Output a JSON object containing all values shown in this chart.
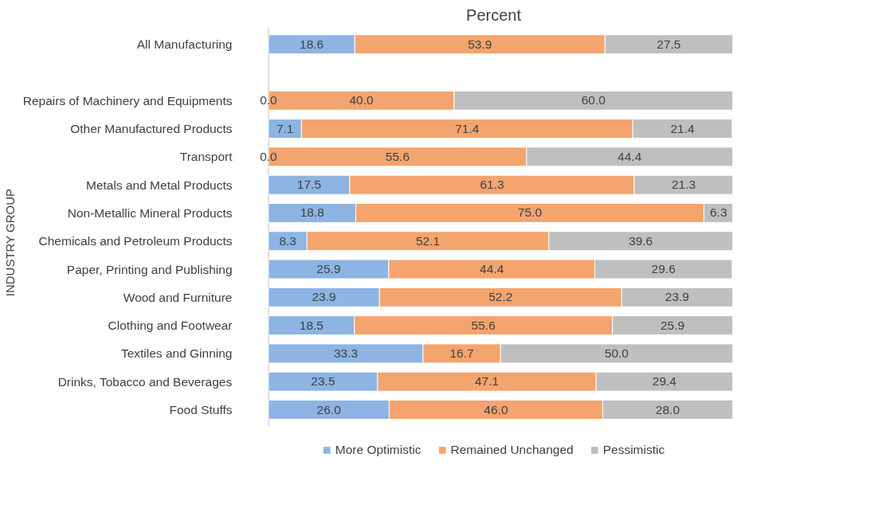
{
  "chart_data": {
    "type": "bar",
    "orientation": "horizontal",
    "stacked": true,
    "title": "Percent",
    "ylabel": "INDUSTRY GROUP",
    "categories": [
      "All Manufacturing",
      null,
      "Repairs of Machinery and Equipments",
      "Other Manufactured Products",
      "Transport",
      "Metals and Metal Products",
      "Non-Metallic Mineral Products",
      "Chemicals and Petroleum Products",
      "Paper, Printing and Publishing",
      "Wood and Furniture",
      "Clothing and Footwear",
      "Textiles and Ginning",
      "Drinks, Tobacco and Beverages",
      "Food Stuffs"
    ],
    "series": [
      {
        "name": "More Optimistic",
        "color": "#8db4e2",
        "values": [
          18.6,
          null,
          0.0,
          7.1,
          0.0,
          17.5,
          18.8,
          8.3,
          25.9,
          23.9,
          18.5,
          33.3,
          23.5,
          26.0
        ],
        "value_labels": [
          "18.6",
          null,
          "0.0",
          "7.1",
          "0.0",
          "17.5",
          "18.8",
          "8.3",
          "25.9",
          "23.9",
          "18.5",
          "33.3",
          "23.5",
          "26.0"
        ]
      },
      {
        "name": "Remained Unchanged",
        "color": "#f4a46e",
        "values": [
          53.9,
          null,
          40.0,
          71.4,
          55.6,
          61.3,
          75.0,
          52.1,
          44.4,
          52.2,
          55.6,
          16.7,
          47.1,
          46.0
        ],
        "value_labels": [
          "53.9",
          null,
          "40.0",
          "71.4",
          "55.6",
          "61.3",
          "75.0",
          "52.1",
          "44.4",
          "52.2",
          "55.6",
          "16.7",
          "47.1",
          "46.0"
        ]
      },
      {
        "name": "Pessimistic",
        "color": "#bfbfbf",
        "values": [
          27.5,
          null,
          60.0,
          21.4,
          44.4,
          21.3,
          6.3,
          39.6,
          29.6,
          23.9,
          25.9,
          50.0,
          29.4,
          28.0
        ],
        "value_labels": [
          "27.5",
          null,
          "60.0",
          "21.4",
          "44.4",
          "21.3",
          "6.3",
          "39.6",
          "29.6",
          "23.9",
          "25.9",
          "50.0",
          "29.4",
          "28.0"
        ]
      }
    ],
    "xlim": [
      0,
      100
    ],
    "tick_labels": "y",
    "grid": false,
    "legend": "bottom"
  }
}
